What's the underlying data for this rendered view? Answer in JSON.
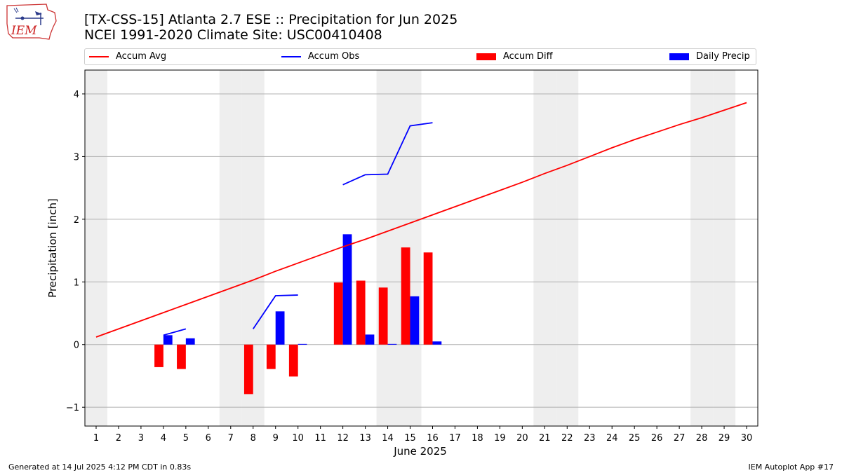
{
  "header": {
    "title_line1": "[TX-CSS-15] Atlanta 2.7 ESE :: Precipitation for Jun 2025",
    "title_line2": "NCEI 1991-2020 Climate Site: USC00410408",
    "logo_text": "IEM"
  },
  "footer": {
    "generated": "Generated at 14 Jul 2025 4:12 PM CDT in 0.83s",
    "app": "IEM Autoplot App #17"
  },
  "colors": {
    "accum_avg": "#ff0000",
    "accum_obs": "#0000ff",
    "accum_diff": "#ff0000",
    "daily_precip": "#0000ff",
    "weekend_shade": "#eeeeee",
    "grid": "#b0b0b0"
  },
  "chart_data": {
    "type": "bar",
    "xlabel": "June 2025",
    "ylabel": "Precipitation [inch]",
    "xlim": [
      0.5,
      30.5
    ],
    "ylim": [
      -1.3,
      4.38
    ],
    "yticks": [
      -1,
      0,
      1,
      2,
      3,
      4
    ],
    "ytick_labels": [
      "−1",
      "0",
      "1",
      "2",
      "3",
      "4"
    ],
    "xticks": [
      1,
      2,
      3,
      4,
      5,
      6,
      7,
      8,
      9,
      10,
      11,
      12,
      13,
      14,
      15,
      16,
      17,
      18,
      19,
      20,
      21,
      22,
      23,
      24,
      25,
      26,
      27,
      28,
      29,
      30
    ],
    "grid": "horizontal",
    "legend_position": "top",
    "weekend_days": [
      1,
      7,
      8,
      14,
      15,
      21,
      22,
      28,
      29
    ],
    "series": [
      {
        "name": "Accum Avg",
        "kind": "line",
        "x": [
          1,
          2,
          3,
          4,
          5,
          6,
          7,
          8,
          9,
          10,
          11,
          12,
          13,
          14,
          15,
          16,
          17,
          18,
          19,
          20,
          21,
          22,
          23,
          24,
          25,
          26,
          27,
          28,
          29,
          30
        ],
        "values": [
          0.12,
          0.25,
          0.38,
          0.51,
          0.64,
          0.77,
          0.9,
          1.03,
          1.17,
          1.3,
          1.43,
          1.56,
          1.68,
          1.81,
          1.94,
          2.07,
          2.2,
          2.33,
          2.46,
          2.59,
          2.73,
          2.86,
          3.0,
          3.14,
          3.27,
          3.39,
          3.51,
          3.62,
          3.74,
          3.86
        ]
      },
      {
        "name": "Accum Obs",
        "kind": "line",
        "segments": [
          {
            "x": [
              4,
              5
            ],
            "values": [
              0.15,
              0.25
            ]
          },
          {
            "x": [
              8,
              9,
              10
            ],
            "values": [
              0.25,
              0.78,
              0.79
            ]
          },
          {
            "x": [
              12,
              13,
              14,
              15,
              16
            ],
            "values": [
              2.55,
              2.71,
              2.72,
              3.49,
              3.54
            ]
          }
        ]
      },
      {
        "name": "Accum Diff",
        "kind": "bar",
        "x": [
          4,
          5,
          8,
          9,
          10,
          12,
          13,
          14,
          15,
          16
        ],
        "values": [
          -0.36,
          -0.39,
          -0.79,
          -0.39,
          -0.51,
          0.99,
          1.02,
          0.91,
          1.55,
          1.47
        ]
      },
      {
        "name": "Daily Precip",
        "kind": "bar",
        "x": [
          4,
          5,
          9,
          10,
          12,
          13,
          14,
          15,
          16
        ],
        "values": [
          0.15,
          0.1,
          0.53,
          0.01,
          1.76,
          0.16,
          0.01,
          0.77,
          0.05
        ]
      }
    ]
  }
}
